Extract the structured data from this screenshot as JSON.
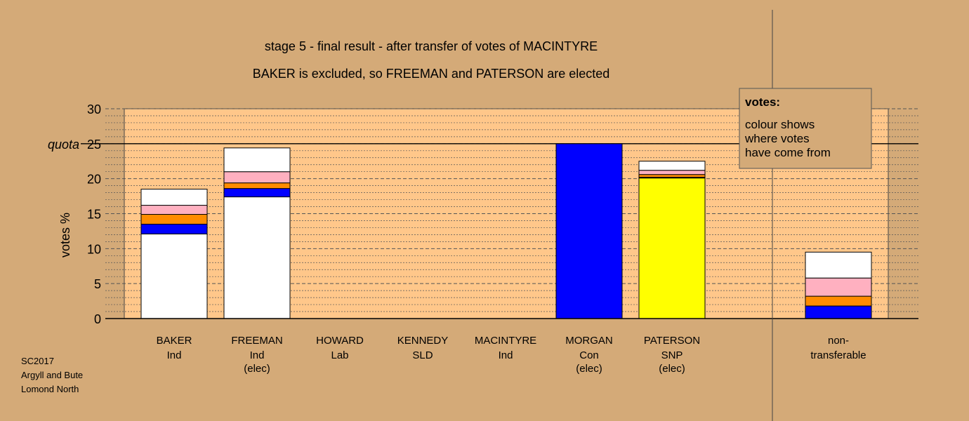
{
  "chart_data": {
    "type": "bar",
    "title": "stage 5 - final result - after transfer of votes of MACINTYRE",
    "subtitle": "BAKER is excluded, so FREEMAN and PATERSON are elected",
    "ylabel": "votes %",
    "ylim": [
      0,
      30
    ],
    "yticks": [
      "0",
      "5",
      "10",
      "15",
      "20",
      "25",
      "30"
    ],
    "quota": {
      "label": "quota",
      "value": 25
    },
    "grid": true,
    "categories": [
      {
        "name": "BAKER",
        "party": "Ind",
        "status": ""
      },
      {
        "name": "FREEMAN",
        "party": "Ind",
        "status": "(elec)"
      },
      {
        "name": "HOWARD",
        "party": "Lab",
        "status": ""
      },
      {
        "name": "KENNEDY",
        "party": "SLD",
        "status": ""
      },
      {
        "name": "MACINTYRE",
        "party": "Ind",
        "status": ""
      },
      {
        "name": "MORGAN",
        "party": "Con",
        "status": "(elec)"
      },
      {
        "name": "PATERSON",
        "party": "SNP",
        "status": "(elec)"
      },
      {
        "name": "non-",
        "party": "transferable",
        "status": ""
      }
    ],
    "bars": [
      [
        {
          "color": "#ffffff",
          "value": 12.1
        },
        {
          "color": "#0000ff",
          "value": 1.4
        },
        {
          "color": "#ff8c00",
          "value": 1.4
        },
        {
          "color": "#ffb0c0",
          "value": 1.3
        },
        {
          "color": "#ffffff",
          "value": 2.3
        }
      ],
      [
        {
          "color": "#ffffff",
          "value": 17.4
        },
        {
          "color": "#0000ff",
          "value": 1.2
        },
        {
          "color": "#ff8c00",
          "value": 0.8
        },
        {
          "color": "#ffb0c0",
          "value": 1.6
        },
        {
          "color": "#ffffff",
          "value": 3.4
        }
      ],
      [],
      [],
      [],
      [
        {
          "color": "#0000ff",
          "value": 25.0
        }
      ],
      [
        {
          "color": "#ffff00",
          "value": 20.1
        },
        {
          "color": "#0000ff",
          "value": 0.1
        },
        {
          "color": "#ff8c00",
          "value": 0.4
        },
        {
          "color": "#ffb0c0",
          "value": 0.6
        },
        {
          "color": "#ffffff",
          "value": 1.3
        }
      ],
      [
        {
          "color": "#0000ff",
          "value": 1.8
        },
        {
          "color": "#ff8c00",
          "value": 1.4
        },
        {
          "color": "#ffb0c0",
          "value": 2.6
        },
        {
          "color": "#ffffff",
          "value": 3.7
        }
      ]
    ],
    "legend": {
      "title": "votes:",
      "lines": [
        "colour shows",
        "where votes",
        "have come from"
      ],
      "placement": "top-right"
    },
    "footnote": [
      "SC2017",
      "Argyll and Bute",
      "Lomond North"
    ]
  },
  "colors": {
    "background": "#d4aa78",
    "plot_area": "#ffc78a",
    "legend_box": "#d4aa78"
  }
}
